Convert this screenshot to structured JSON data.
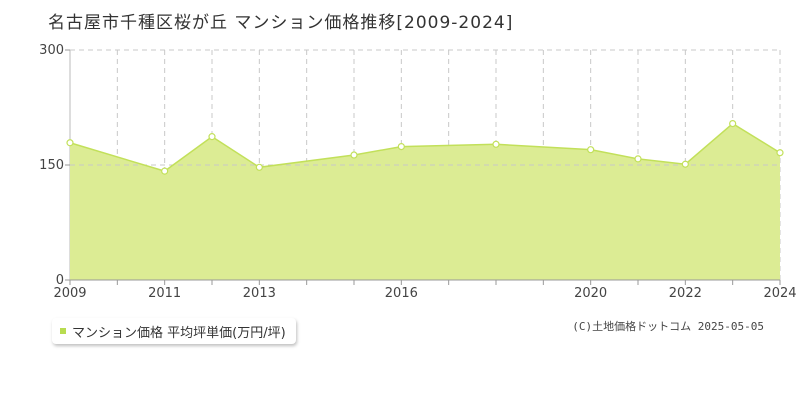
{
  "title": "名古屋市千種区桜が丘 マンション価格推移[2009-2024]",
  "legend": {
    "label": "マンション価格 平均坪単価(万円/坪)"
  },
  "footer": "(C)土地価格ドットコム 2025-05-05",
  "colors": {
    "fill": "#dcec94",
    "line": "#c2e05a",
    "point_fill": "#ffffff"
  },
  "chart_data": {
    "type": "area",
    "title": "名古屋市千種区桜が丘 マンション価格推移[2009-2024]",
    "x": [
      2009,
      2010,
      2011,
      2012,
      2013,
      2014,
      2015,
      2016,
      2017,
      2018,
      2019,
      2020,
      2021,
      2022,
      2023,
      2024
    ],
    "series": [
      {
        "name": "マンション価格 平均坪単価(万円/坪)",
        "points": [
          {
            "x": 2009,
            "y": 179
          },
          {
            "x": 2011,
            "y": 142
          },
          {
            "x": 2012,
            "y": 187
          },
          {
            "x": 2013,
            "y": 147
          },
          {
            "x": 2015,
            "y": 163
          },
          {
            "x": 2016,
            "y": 174
          },
          {
            "x": 2018,
            "y": 177
          },
          {
            "x": 2020,
            "y": 170
          },
          {
            "x": 2021,
            "y": 158
          },
          {
            "x": 2022,
            "y": 151
          },
          {
            "x": 2023,
            "y": 204
          },
          {
            "x": 2024,
            "y": 166
          }
        ]
      }
    ],
    "x_tick_labels": [
      2009,
      2011,
      2013,
      2016,
      2020,
      2022,
      2024
    ],
    "y_ticks": [
      0,
      150,
      300
    ],
    "xlim": [
      2009,
      2024
    ],
    "ylim": [
      0,
      300
    ],
    "grid": true
  }
}
